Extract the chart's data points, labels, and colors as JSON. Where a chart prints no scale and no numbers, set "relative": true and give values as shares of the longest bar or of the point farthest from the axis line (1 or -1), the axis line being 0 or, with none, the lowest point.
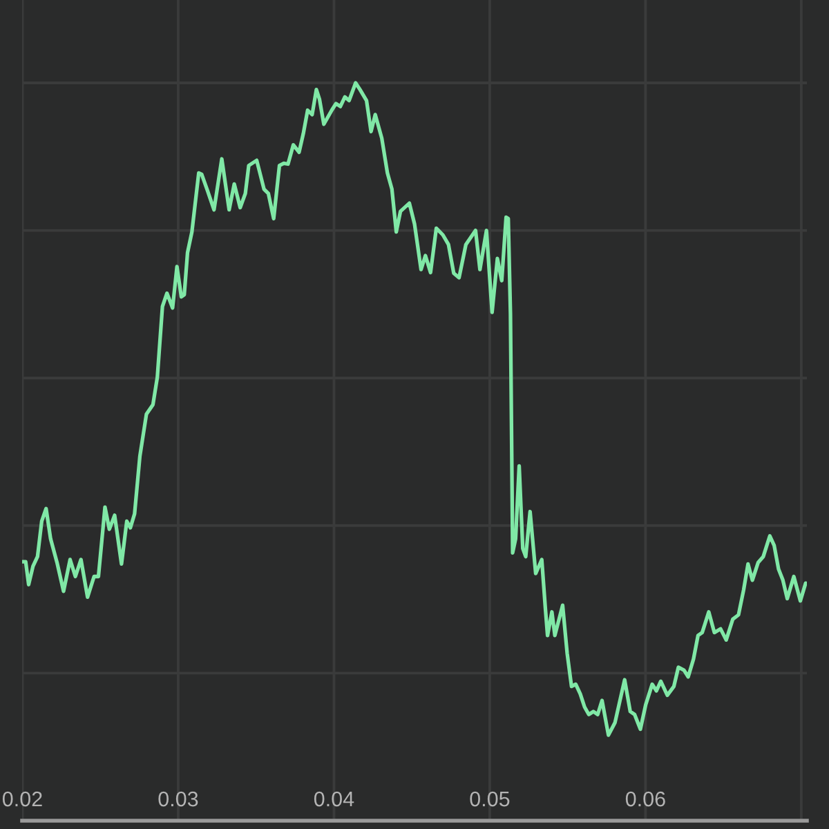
{
  "chart_data": {
    "type": "line",
    "relative": true,
    "x": [
      0.02,
      0.02021,
      0.0204,
      0.02068,
      0.02097,
      0.02124,
      0.02152,
      0.02181,
      0.02222,
      0.02264,
      0.02306,
      0.0234,
      0.02376,
      0.02418,
      0.0246,
      0.02488,
      0.0253,
      0.02558,
      0.02592,
      0.02636,
      0.0267,
      0.02693,
      0.0272,
      0.02754,
      0.02796,
      0.02838,
      0.02866,
      0.02899,
      0.02928,
      0.02964,
      0.02992,
      0.0302,
      0.03039,
      0.0306,
      0.03088,
      0.03132,
      0.03151,
      0.03188,
      0.0323,
      0.0328,
      0.03327,
      0.0336,
      0.03398,
      0.03431,
      0.03453,
      0.03504,
      0.03551,
      0.03579,
      0.03613,
      0.0365,
      0.03678,
      0.03705,
      0.03739,
      0.03776,
      0.03803,
      0.03831,
      0.0386,
      0.03887,
      0.03907,
      0.03935,
      0.03986,
      0.04013,
      0.04041,
      0.0407,
      0.04097,
      0.04139,
      0.04167,
      0.04209,
      0.04238,
      0.04265,
      0.04307,
      0.04343,
      0.04372,
      0.044,
      0.04427,
      0.04484,
      0.04517,
      0.04559,
      0.04587,
      0.0462,
      0.04657,
      0.04699,
      0.04735,
      0.04769,
      0.04803,
      0.04847,
      0.04909,
      0.04937,
      0.04979,
      0.05015,
      0.05049,
      0.05077,
      0.05105,
      0.05119,
      0.05133,
      0.05147,
      0.05166,
      0.05189,
      0.05212,
      0.05231,
      0.05259,
      0.05295,
      0.05334,
      0.05357,
      0.05371,
      0.05399,
      0.05418,
      0.05468,
      0.05497,
      0.05525,
      0.05552,
      0.05581,
      0.05609,
      0.05636,
      0.05665,
      0.05693,
      0.05721,
      0.05762,
      0.05804,
      0.05866,
      0.05902,
      0.0593,
      0.05967,
      0.06001,
      0.06043,
      0.0607,
      0.06098,
      0.0614,
      0.06182,
      0.06211,
      0.06247,
      0.06274,
      0.06308,
      0.06337,
      0.06364,
      0.06406,
      0.06442,
      0.06482,
      0.06518,
      0.0656,
      0.06597,
      0.0663,
      0.06658,
      0.06686,
      0.06723,
      0.06756,
      0.06798,
      0.06826,
      0.06854,
      0.06882,
      0.0691,
      0.06952,
      0.06994,
      0.07028
    ],
    "series": [
      {
        "color": "#80e8a6",
        "values": [
          0.351,
          0.351,
          0.32,
          0.345,
          0.358,
          0.406,
          0.423,
          0.382,
          0.35,
          0.311,
          0.354,
          0.331,
          0.354,
          0.303,
          0.331,
          0.331,
          0.425,
          0.395,
          0.414,
          0.348,
          0.406,
          0.397,
          0.416,
          0.494,
          0.551,
          0.564,
          0.601,
          0.697,
          0.715,
          0.695,
          0.751,
          0.71,
          0.713,
          0.77,
          0.798,
          0.878,
          0.876,
          0.854,
          0.828,
          0.897,
          0.828,
          0.863,
          0.831,
          0.85,
          0.888,
          0.895,
          0.856,
          0.85,
          0.816,
          0.888,
          0.891,
          0.89,
          0.916,
          0.906,
          0.931,
          0.963,
          0.957,
          0.991,
          0.978,
          0.944,
          0.963,
          0.972,
          0.968,
          0.981,
          0.976,
          1,
          0.991,
          0.976,
          0.934,
          0.957,
          0.925,
          0.878,
          0.856,
          0.798,
          0.826,
          0.837,
          0.809,
          0.747,
          0.766,
          0.743,
          0.803,
          0.794,
          0.781,
          0.742,
          0.736,
          0.781,
          0.8,
          0.747,
          0.8,
          0.689,
          0.762,
          0.732,
          0.818,
          0.816,
          0.687,
          0.363,
          0.382,
          0.481,
          0.369,
          0.358,
          0.419,
          0.335,
          0.354,
          0.288,
          0.251,
          0.283,
          0.251,
          0.292,
          0.227,
          0.182,
          0.185,
          0.172,
          0.154,
          0.144,
          0.148,
          0.144,
          0.163,
          0.116,
          0.133,
          0.191,
          0.148,
          0.144,
          0.124,
          0.157,
          0.185,
          0.176,
          0.189,
          0.17,
          0.182,
          0.208,
          0.204,
          0.195,
          0.219,
          0.251,
          0.255,
          0.283,
          0.255,
          0.26,
          0.245,
          0.273,
          0.279,
          0.313,
          0.348,
          0.326,
          0.35,
          0.358,
          0.386,
          0.373,
          0.341,
          0.326,
          0.301,
          0.331,
          0.298,
          0.322
        ]
      }
    ],
    "xlim": [
      0.01998,
      0.07036
    ],
    "xticks": [
      0.02,
      0.03,
      0.04,
      0.05,
      0.06,
      {
        "value": 0.07,
        "label": null
      }
    ],
    "grid": true,
    "tick_labels": "x"
  }
}
